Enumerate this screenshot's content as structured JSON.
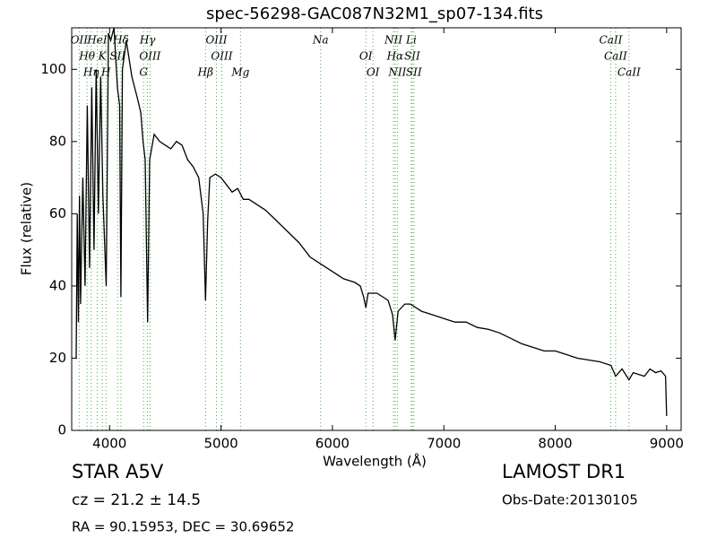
{
  "chart_data": {
    "type": "line",
    "title": "spec-56298-GAC087N32M1_sp07-134.fits",
    "x_label": "Wavelength (Å)",
    "y_label": "Flux (relative)",
    "xlim": [
      3660,
      9130
    ],
    "ylim": [
      0,
      111.5
    ],
    "xticks": [
      4000,
      5000,
      6000,
      7000,
      8000,
      9000
    ],
    "yticks": [
      0,
      20,
      40,
      60,
      80,
      100
    ],
    "grid": false,
    "series": [
      {
        "name": "Flux",
        "color": "#000000",
        "x": [
          3700,
          3710,
          3720,
          3730,
          3740,
          3760,
          3780,
          3800,
          3820,
          3840,
          3860,
          3880,
          3900,
          3920,
          3940,
          3970,
          3990,
          4010,
          4040,
          4070,
          4090,
          4102,
          4115,
          4150,
          4200,
          4250,
          4280,
          4300,
          4320,
          4341,
          4360,
          4400,
          4450,
          4500,
          4550,
          4600,
          4650,
          4700,
          4750,
          4800,
          4840,
          4861,
          4880,
          4900,
          4950,
          5000,
          5050,
          5100,
          5150,
          5200,
          5250,
          5300,
          5400,
          5500,
          5600,
          5700,
          5800,
          5900,
          6000,
          6100,
          6200,
          6250,
          6280,
          6300,
          6320,
          6400,
          6500,
          6540,
          6563,
          6590,
          6650,
          6700,
          6800,
          6900,
          7000,
          7100,
          7200,
          7300,
          7400,
          7500,
          7600,
          7700,
          7800,
          7900,
          8000,
          8100,
          8200,
          8300,
          8400,
          8500,
          8542,
          8600,
          8662,
          8700,
          8800,
          8850,
          8900,
          8950,
          8990,
          9000
        ],
        "values": [
          20,
          60,
          30,
          65,
          35,
          70,
          40,
          90,
          45,
          95,
          50,
          100,
          60,
          98,
          65,
          40,
          110,
          108,
          112,
          95,
          90,
          37,
          100,
          108,
          98,
          92,
          88,
          80,
          75,
          30,
          75,
          82,
          80,
          79,
          78,
          80,
          79,
          75,
          73,
          70,
          60,
          36,
          58,
          70,
          71,
          70,
          68,
          66,
          67,
          64,
          64,
          63,
          61,
          58,
          55,
          52,
          48,
          46,
          44,
          42,
          41,
          40,
          37,
          34,
          38,
          38,
          36,
          32,
          25,
          33,
          35,
          35,
          33,
          32,
          31,
          30,
          30,
          28.5,
          28,
          27,
          25.5,
          24,
          23,
          22,
          22,
          21,
          20,
          19.5,
          19,
          18,
          15,
          17,
          14,
          16,
          15,
          17,
          16,
          16.5,
          15,
          4
        ]
      }
    ],
    "line_marker_color": "#44aa44",
    "spectral_lines": [
      {
        "name": "OII",
        "x": 3727
      },
      {
        "name": "Hθ",
        "x": 3798
      },
      {
        "name": "Hη",
        "x": 3835
      },
      {
        "name": "HeI",
        "x": 3889
      },
      {
        "name": "K",
        "x": 3934
      },
      {
        "name": "H",
        "x": 3968
      },
      {
        "name": "Hδ",
        "x": 4102
      },
      {
        "name": "SII",
        "x": 4072
      },
      {
        "name": "G",
        "x": 4305
      },
      {
        "name": "Hγ",
        "x": 4341
      },
      {
        "name": "OIII",
        "x": 4363
      },
      {
        "name": "Hβ",
        "x": 4861
      },
      {
        "name": "OIII",
        "x": 4959
      },
      {
        "name": "OIII",
        "x": 5007
      },
      {
        "name": "Mg",
        "x": 5175
      },
      {
        "name": "Na",
        "x": 5894
      },
      {
        "name": "OI",
        "x": 6300
      },
      {
        "name": "OI",
        "x": 6364
      },
      {
        "name": "NII",
        "x": 6548
      },
      {
        "name": "Hα",
        "x": 6563
      },
      {
        "name": "NII",
        "x": 6583
      },
      {
        "name": "Li",
        "x": 6708
      },
      {
        "name": "SII",
        "x": 6716
      },
      {
        "name": "SII",
        "x": 6731
      },
      {
        "name": "CaII",
        "x": 8498
      },
      {
        "name": "CaII",
        "x": 8542
      },
      {
        "name": "CaII",
        "x": 8662
      }
    ],
    "annotations": {
      "class": "STAR   A5V",
      "cz": "cz = 21.2  ± 14.5",
      "coords": "RA = 90.15953, DEC = 30.69652",
      "release": "LAMOST DR1",
      "obs_date": "Obs-Date:20130105"
    }
  }
}
